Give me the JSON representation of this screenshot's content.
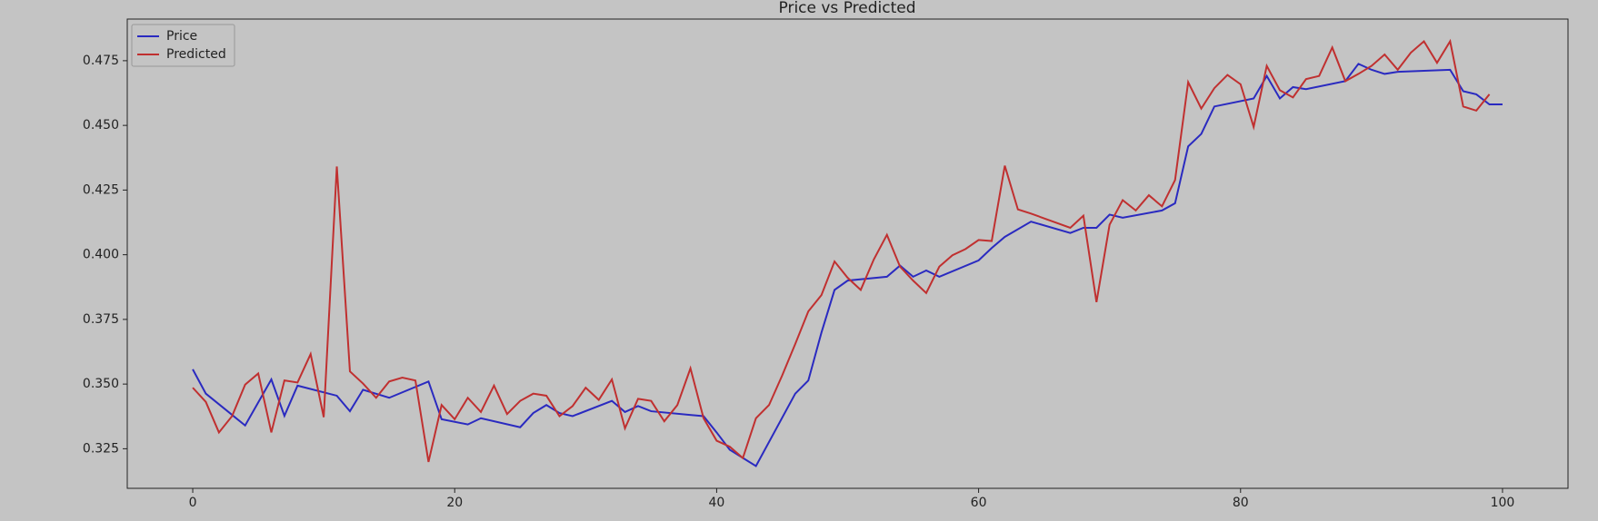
{
  "chart_data": {
    "type": "line",
    "title": "Price vs Predicted",
    "xlim": [
      -5,
      105
    ],
    "xticks": [
      0,
      20,
      40,
      60,
      80,
      100
    ],
    "ylim": [
      0.3097,
      0.4911
    ],
    "yticks": [
      0.325,
      {
        "value": 0.35,
        "label": "0.350"
      },
      0.375,
      {
        "value": 0.4,
        "label": "0.400"
      },
      0.425,
      {
        "value": 0.45,
        "label": "0.450"
      },
      0.475
    ],
    "legend": "upper left",
    "series": [
      {
        "name": "Price",
        "color": "#2a2ac0",
        "x": [
          0,
          1,
          4,
          6,
          7,
          8,
          11,
          12,
          13,
          15,
          18,
          19,
          21,
          22,
          25,
          26,
          27,
          28,
          29,
          32,
          33,
          34,
          35,
          39,
          40,
          41,
          43,
          46,
          47,
          48,
          49,
          50,
          53,
          54,
          55,
          56,
          57,
          60,
          61,
          62,
          64,
          67,
          68,
          69,
          70,
          71,
          74,
          75,
          76,
          77,
          78,
          81,
          82,
          83,
          84,
          85,
          88,
          89,
          90,
          91,
          92,
          96,
          97,
          98,
          99,
          100
        ],
        "values": [
          0.3557,
          0.3463,
          0.334,
          0.3518,
          0.3377,
          0.3494,
          0.3455,
          0.3395,
          0.3478,
          0.3447,
          0.351,
          0.3364,
          0.3344,
          0.3368,
          0.3333,
          0.3388,
          0.3419,
          0.3388,
          0.3376,
          0.3435,
          0.3392,
          0.3415,
          0.3395,
          0.3376,
          0.3313,
          0.3246,
          0.3183,
          0.3463,
          0.3514,
          0.3699,
          0.3864,
          0.39,
          0.3915,
          0.3958,
          0.3915,
          0.3939,
          0.3915,
          0.3978,
          0.4026,
          0.4069,
          0.4128,
          0.4084,
          0.4104,
          0.4104,
          0.4155,
          0.4143,
          0.4171,
          0.4199,
          0.4419,
          0.4467,
          0.4573,
          0.4604,
          0.4691,
          0.4604,
          0.4648,
          0.464,
          0.4671,
          0.4738,
          0.4715,
          0.4699,
          0.4707,
          0.4715,
          0.4632,
          0.462,
          0.4581,
          0.4581
        ]
      },
      {
        "name": "Predicted",
        "color": "#c03030",
        "x": [
          0,
          1,
          2,
          3,
          4,
          5,
          6,
          7,
          8,
          9,
          10,
          11,
          12,
          13,
          14,
          15,
          16,
          17,
          18,
          19,
          20,
          21,
          22,
          23,
          24,
          25,
          26,
          27,
          28,
          29,
          30,
          31,
          32,
          33,
          34,
          35,
          36,
          37,
          38,
          39,
          40,
          41,
          42,
          43,
          44,
          45,
          46,
          47,
          48,
          49,
          50,
          51,
          52,
          53,
          54,
          55,
          56,
          57,
          58,
          59,
          60,
          61,
          62,
          63,
          64,
          67,
          68,
          69,
          70,
          71,
          72,
          73,
          74,
          75,
          76,
          77,
          78,
          79,
          80,
          81,
          82,
          83,
          84,
          85,
          86,
          87,
          88,
          89,
          90,
          91,
          92,
          93,
          94,
          95,
          96,
          97,
          98,
          99
        ],
        "values": [
          0.3486,
          0.3431,
          0.3313,
          0.3376,
          0.3498,
          0.3541,
          0.3313,
          0.3514,
          0.3506,
          0.3616,
          0.3372,
          0.4341,
          0.3549,
          0.3502,
          0.3447,
          0.351,
          0.3525,
          0.3514,
          0.3199,
          0.3419,
          0.3364,
          0.3447,
          0.3392,
          0.3494,
          0.3384,
          0.3435,
          0.3463,
          0.3455,
          0.3376,
          0.3415,
          0.3486,
          0.3439,
          0.3518,
          0.3329,
          0.3443,
          0.3435,
          0.3356,
          0.3419,
          0.3561,
          0.3368,
          0.3281,
          0.3258,
          0.3214,
          0.3368,
          0.3419,
          0.3533,
          0.3655,
          0.3781,
          0.3844,
          0.3974,
          0.3911,
          0.3864,
          0.3982,
          0.4077,
          0.3954,
          0.39,
          0.3852,
          0.3954,
          0.3998,
          0.4022,
          0.4057,
          0.4053,
          0.4344,
          0.4175,
          0.4159,
          0.4104,
          0.4151,
          0.3817,
          0.4116,
          0.4211,
          0.4171,
          0.423,
          0.4187,
          0.4289,
          0.4667,
          0.4565,
          0.4644,
          0.4695,
          0.4659,
          0.4494,
          0.473,
          0.4636,
          0.4608,
          0.4679,
          0.4691,
          0.4801,
          0.4671,
          0.4699,
          0.473,
          0.4774,
          0.4715,
          0.4781,
          0.4825,
          0.4742,
          0.4825,
          0.4573,
          0.4557,
          0.462
        ]
      }
    ]
  }
}
